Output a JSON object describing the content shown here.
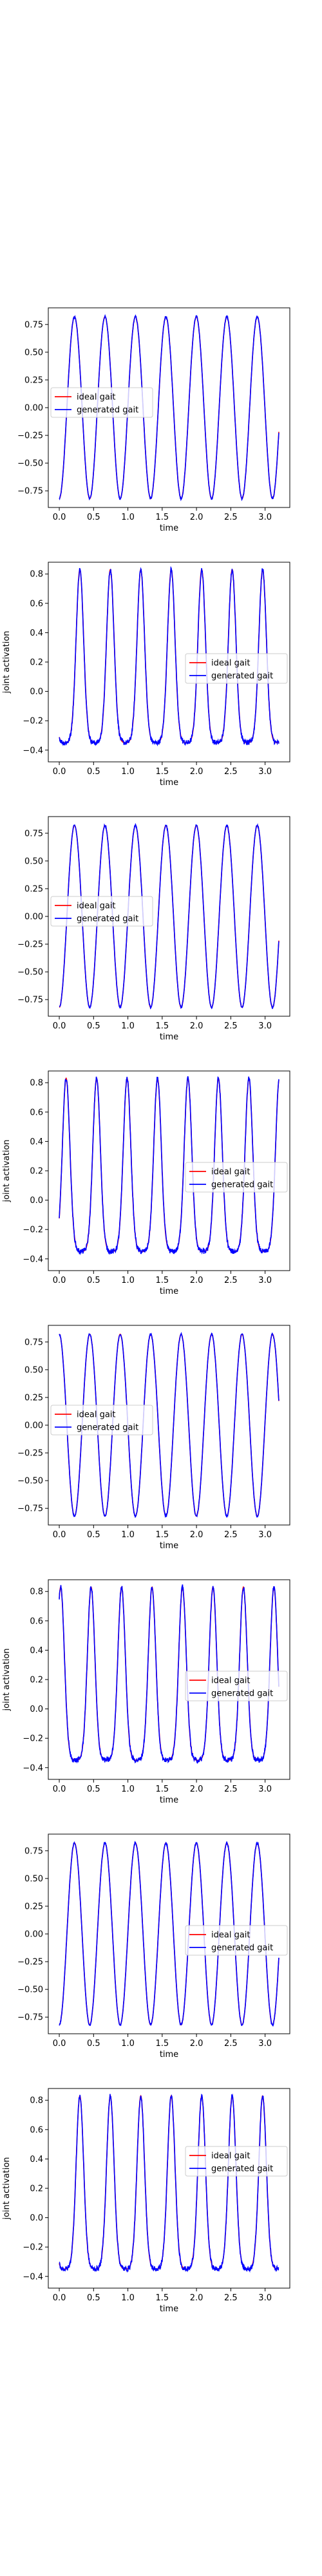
{
  "colors": {
    "ideal": "#ff0000",
    "generated": "#0000ff",
    "axes": "#000000",
    "legend_border": "#cccccc"
  },
  "shared": {
    "xlabel": "time",
    "xlim": [
      -0.16,
      3.36
    ],
    "xticks": [
      0.0,
      0.5,
      1.0,
      1.5,
      2.0,
      2.5,
      3.0
    ],
    "xtick_labels": [
      "0.0",
      "0.5",
      "1.0",
      "1.5",
      "2.0",
      "2.5",
      "3.0"
    ]
  },
  "chart_data": [
    {
      "type": "line",
      "waveform": "sine",
      "period": 0.444,
      "phase_deg": -90,
      "amplitude": 0.82,
      "offset": 0,
      "ylabel": "",
      "ylim": [
        -0.9,
        0.9
      ],
      "yticks": [
        -0.75,
        -0.5,
        -0.25,
        0.0,
        0.25,
        0.5,
        0.75
      ],
      "ytick_labels": [
        "−0.75",
        "−0.50",
        "−0.25",
        "0.00",
        "0.25",
        "0.50",
        "0.75"
      ],
      "legend": "center-left",
      "series": [
        {
          "name": "ideal gait",
          "color": "#ff0000"
        },
        {
          "name": "generated gait",
          "color": "#0000ff"
        }
      ]
    },
    {
      "type": "line",
      "waveform": "pulse",
      "period": 0.444,
      "pulse_peak_at": 0.3,
      "baseline": -0.35,
      "peak": 0.83,
      "ylabel": "joint activation",
      "ylim": [
        -0.48,
        0.88
      ],
      "yticks": [
        -0.4,
        -0.2,
        0.0,
        0.2,
        0.4,
        0.6,
        0.8
      ],
      "ytick_labels": [
        "−0.4",
        "−0.2",
        "0.0",
        "0.2",
        "0.4",
        "0.6",
        "0.8"
      ],
      "legend": "center-right",
      "series": [
        {
          "name": "ideal gait",
          "color": "#ff0000"
        },
        {
          "name": "generated gait",
          "color": "#0000ff"
        }
      ]
    },
    {
      "type": "line",
      "waveform": "sine",
      "period": 0.444,
      "phase_deg": -90,
      "amplitude": 0.82,
      "offset": 0,
      "ylabel": "",
      "ylim": [
        -0.9,
        0.9
      ],
      "yticks": [
        -0.75,
        -0.5,
        -0.25,
        0.0,
        0.25,
        0.5,
        0.75
      ],
      "ytick_labels": [
        "−0.75",
        "−0.50",
        "−0.25",
        "0.00",
        "0.25",
        "0.50",
        "0.75"
      ],
      "legend": "center-left",
      "series": [
        {
          "name": "ideal gait",
          "color": "#ff0000"
        },
        {
          "name": "generated gait",
          "color": "#0000ff"
        }
      ]
    },
    {
      "type": "line",
      "waveform": "pulse",
      "period": 0.444,
      "pulse_peak_at": 0.1,
      "baseline": -0.35,
      "peak": 0.83,
      "ylabel": "joint activation",
      "ylim": [
        -0.48,
        0.88
      ],
      "yticks": [
        -0.4,
        -0.2,
        0.0,
        0.2,
        0.4,
        0.6,
        0.8
      ],
      "ytick_labels": [
        "−0.4",
        "−0.2",
        "0.0",
        "0.2",
        "0.4",
        "0.6",
        "0.8"
      ],
      "legend": "center-right",
      "series": [
        {
          "name": "ideal gait",
          "color": "#ff0000"
        },
        {
          "name": "generated gait",
          "color": "#0000ff"
        }
      ]
    },
    {
      "type": "line",
      "waveform": "sine",
      "period": 0.444,
      "phase_deg": 90,
      "amplitude": 0.82,
      "offset": 0,
      "ylabel": "",
      "ylim": [
        -0.9,
        0.9
      ],
      "yticks": [
        -0.75,
        -0.5,
        -0.25,
        0.0,
        0.25,
        0.5,
        0.75
      ],
      "ytick_labels": [
        "−0.75",
        "−0.50",
        "−0.25",
        "0.00",
        "0.25",
        "0.50",
        "0.75"
      ],
      "legend": "center-left",
      "series": [
        {
          "name": "ideal gait",
          "color": "#ff0000"
        },
        {
          "name": "generated gait",
          "color": "#0000ff"
        }
      ]
    },
    {
      "type": "line",
      "waveform": "pulse",
      "period": 0.444,
      "pulse_peak_at": 0.02,
      "baseline": -0.35,
      "peak": 0.83,
      "ylabel": "joint activation",
      "ylim": [
        -0.48,
        0.88
      ],
      "yticks": [
        -0.4,
        -0.2,
        0.0,
        0.2,
        0.4,
        0.6,
        0.8
      ],
      "ytick_labels": [
        "−0.4",
        "−0.2",
        "0.0",
        "0.2",
        "0.4",
        "0.6",
        "0.8"
      ],
      "legend": "center-right",
      "series": [
        {
          "name": "ideal gait",
          "color": "#ff0000"
        },
        {
          "name": "generated gait",
          "color": "#0000ff"
        }
      ]
    },
    {
      "type": "line",
      "waveform": "sine",
      "period": 0.444,
      "phase_deg": -90,
      "amplitude": 0.82,
      "offset": 0,
      "ylabel": "",
      "ylim": [
        -0.9,
        0.9
      ],
      "yticks": [
        -0.75,
        -0.5,
        -0.25,
        0.0,
        0.25,
        0.5,
        0.75
      ],
      "ytick_labels": [
        "−0.75",
        "−0.50",
        "−0.25",
        "0.00",
        "0.25",
        "0.50",
        "0.75"
      ],
      "legend": "center-right",
      "series": [
        {
          "name": "ideal gait",
          "color": "#ff0000"
        },
        {
          "name": "generated gait",
          "color": "#0000ff"
        }
      ]
    },
    {
      "type": "line",
      "waveform": "pulse",
      "period": 0.444,
      "pulse_peak_at": 0.3,
      "baseline": -0.35,
      "peak": 0.83,
      "ylabel": "joint activation",
      "ylim": [
        -0.48,
        0.88
      ],
      "yticks": [
        -0.4,
        -0.2,
        0.0,
        0.2,
        0.4,
        0.6,
        0.8
      ],
      "ytick_labels": [
        "−0.4",
        "−0.2",
        "0.0",
        "0.2",
        "0.4",
        "0.6",
        "0.8"
      ],
      "legend": "upper-right",
      "series": [
        {
          "name": "ideal gait",
          "color": "#ff0000"
        },
        {
          "name": "generated gait",
          "color": "#0000ff"
        }
      ]
    }
  ]
}
